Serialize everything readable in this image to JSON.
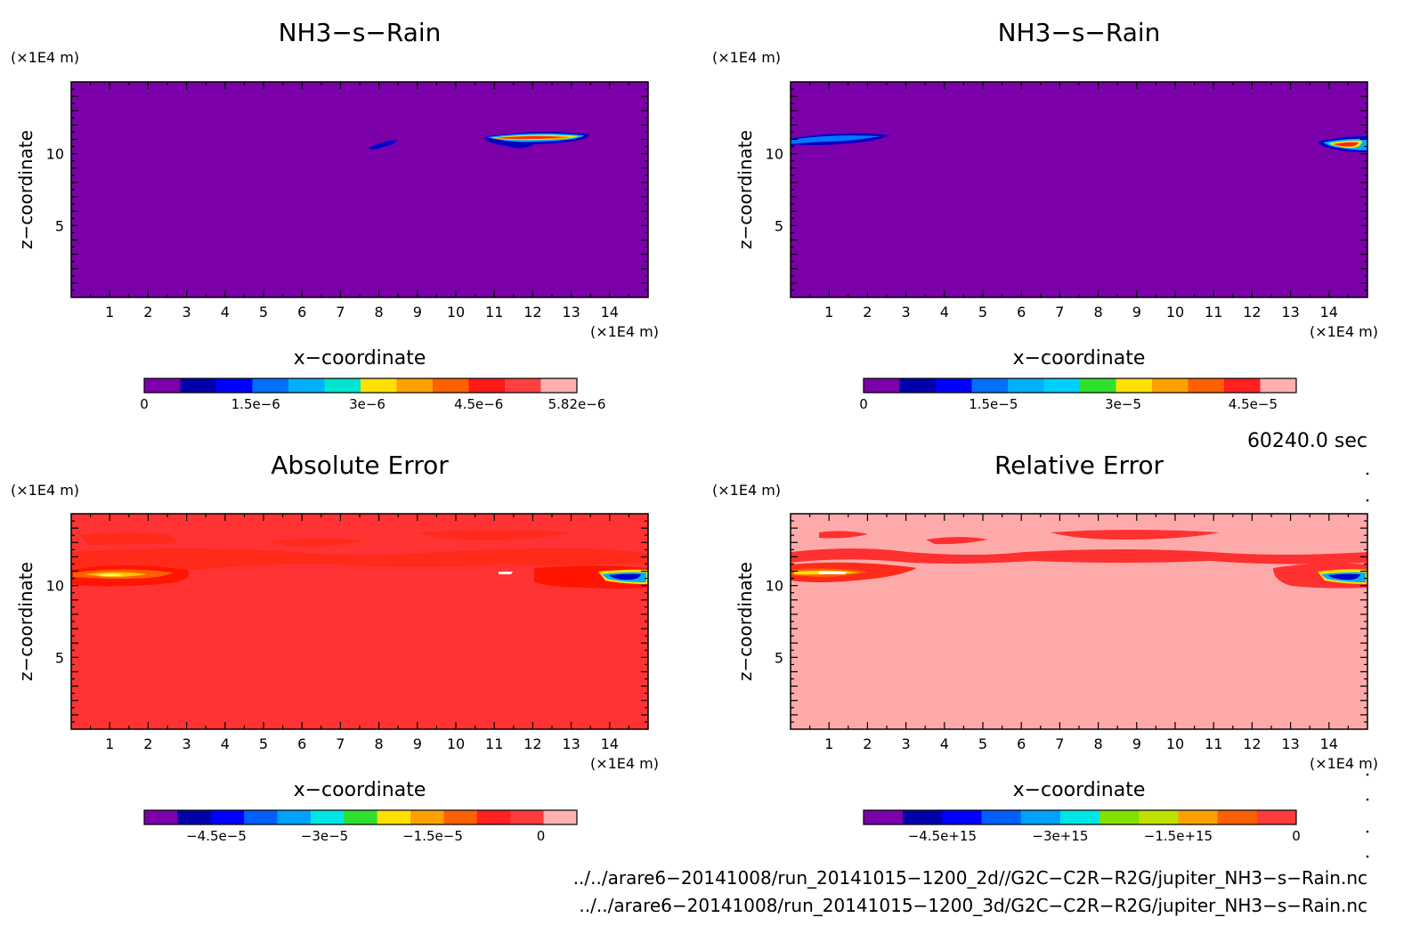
{
  "chart_data": [
    {
      "type": "contour",
      "title": "NH3−s−Rain",
      "xlabel": "x−coordinate",
      "ylabel": "z−coordinate",
      "x_unit": "(×1E4 m)",
      "y_unit": "(×1E4 m)",
      "xlim": [
        0,
        15
      ],
      "ylim": [
        0,
        15
      ],
      "x_ticks": [
        "1",
        "2",
        "3",
        "4",
        "5",
        "6",
        "7",
        "8",
        "9",
        "10",
        "11",
        "12",
        "13",
        "14"
      ],
      "y_ticks": [
        "5",
        "10"
      ],
      "background": "#7b00aa",
      "features": [
        {
          "x": [
            11.6,
            12.8
          ],
          "z": [
            10.9,
            11.3
          ],
          "peak": 5.82e-06
        },
        {
          "x": [
            7.7,
            8.4
          ],
          "z": [
            10.3,
            10.9
          ],
          "peak": 1.5e-06
        }
      ],
      "colorbar": {
        "colors": [
          "#7b00aa",
          "#0000a8",
          "#0000ff",
          "#0070ff",
          "#00b0ff",
          "#00e5d0",
          "#ffe000",
          "#ffa000",
          "#ff6000",
          "#ff1a1a",
          "#ff4040",
          "#ffb0b0"
        ],
        "labels": [
          "0",
          "1.5e−6",
          "3e−6",
          "4.5e−6",
          "5.82e−6"
        ],
        "label_values": [
          0,
          1.5e-06,
          3e-06,
          4.5e-06,
          5.82e-06
        ],
        "range": [
          0,
          5.82e-06
        ]
      }
    },
    {
      "type": "contour",
      "title": "NH3−s−Rain",
      "xlabel": "x−coordinate",
      "ylabel": "z−coordinate",
      "x_unit": "(×1E4 m)",
      "y_unit": "(×1E4 m)",
      "xlim": [
        0,
        15
      ],
      "ylim": [
        0,
        15
      ],
      "x_ticks": [
        "1",
        "2",
        "3",
        "4",
        "5",
        "6",
        "7",
        "8",
        "9",
        "10",
        "11",
        "12",
        "13",
        "14"
      ],
      "y_ticks": [
        "5",
        "10"
      ],
      "background": "#7b00aa",
      "features": [
        {
          "x": [
            0,
            2.5
          ],
          "z": [
            10.4,
            11.2
          ],
          "peak": 1.5e-05
        },
        {
          "x": [
            13.8,
            15
          ],
          "z": [
            10.0,
            11.0
          ],
          "peak": 4.5e-05
        }
      ],
      "colorbar": {
        "colors": [
          "#7b00aa",
          "#0000a8",
          "#0000ff",
          "#0070ff",
          "#00b0ff",
          "#00d0ff",
          "#30e030",
          "#ffe000",
          "#ffa000",
          "#ff6000",
          "#ff2020",
          "#ffb0b0"
        ],
        "labels": [
          "0",
          "1.5e−5",
          "3e−5",
          "4.5e−5"
        ],
        "label_values": [
          0,
          1.5e-05,
          3e-05,
          4.5e-05
        ],
        "range": [
          0,
          5e-05
        ]
      }
    },
    {
      "type": "contour",
      "title": "Absolute Error",
      "xlabel": "x−coordinate",
      "ylabel": "z−coordinate",
      "x_unit": "(×1E4 m)",
      "y_unit": "(×1E4 m)",
      "xlim": [
        0,
        15
      ],
      "ylim": [
        0,
        15
      ],
      "x_ticks": [
        "1",
        "2",
        "3",
        "4",
        "5",
        "6",
        "7",
        "8",
        "9",
        "10",
        "11",
        "12",
        "13",
        "14"
      ],
      "y_ticks": [
        "5",
        "10"
      ],
      "background": "#ff3333",
      "colorbar": {
        "colors": [
          "#7b00aa",
          "#0000a8",
          "#0000ff",
          "#0060ff",
          "#00a0ff",
          "#00e5e5",
          "#30e030",
          "#ffe000",
          "#ffa000",
          "#ff6000",
          "#ff2020",
          "#ff3b3b",
          "#ffb0b0"
        ],
        "labels": [
          "−4.5e−5",
          "−3e−5",
          "−1.5e−5",
          "0"
        ],
        "label_values": [
          -4.5e-05,
          -3e-05,
          -1.5e-05,
          0
        ],
        "range": [
          -5.5e-05,
          5e-06
        ]
      }
    },
    {
      "type": "contour",
      "title": "Relative Error",
      "xlabel": "x−coordinate",
      "ylabel": "z−coordinate",
      "x_unit": "(×1E4 m)",
      "y_unit": "(×1E4 m)",
      "xlim": [
        0,
        15
      ],
      "ylim": [
        0,
        15
      ],
      "x_ticks": [
        "1",
        "2",
        "3",
        "4",
        "5",
        "6",
        "7",
        "8",
        "9",
        "10",
        "11",
        "12",
        "13",
        "14"
      ],
      "y_ticks": [
        "5",
        "10"
      ],
      "background": "#ffaaaa",
      "colorbar": {
        "colors": [
          "#7b00aa",
          "#0000a8",
          "#0000ff",
          "#0060ff",
          "#00a0ff",
          "#00e5e5",
          "#80e000",
          "#c0e000",
          "#ffa000",
          "#ff6000",
          "#ff3b3b"
        ],
        "labels": [
          "−4.5e+15",
          "−3e+15",
          "−1.5e+15",
          "0"
        ],
        "label_values": [
          -4500000000000000.0,
          -3000000000000000.0,
          -1500000000000000.0,
          0
        ],
        "range": [
          -5500000000000000.0,
          0
        ]
      }
    }
  ],
  "time_label": "60240.0 sec",
  "footer": {
    "file_2d": "../../arare6−20141008/run_20141015−1200_2d//G2C−C2R−R2G/jupiter_NH3−s−Rain.nc",
    "file_3d": "../../arare6−20141008/run_20141015−1200_3d/G2C−C2R−R2G/jupiter_NH3−s−Rain.nc"
  }
}
